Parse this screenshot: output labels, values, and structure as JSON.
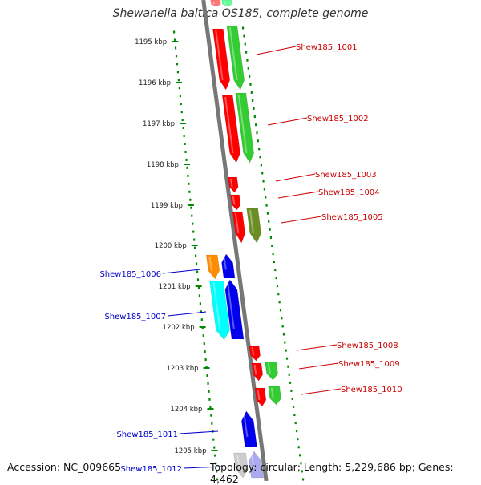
{
  "title": "Shewanella baltica OS185, complete genome",
  "footer": {
    "accession": "Accession: NC_009665",
    "topology": "Topology: circular; Length: 5,229,686 bp; Genes: 4,462"
  },
  "colors": {
    "plus_strand_label": "#cc0000",
    "minus_strand_label": "#0000cc",
    "red": "#ff0000",
    "green": "#33cc33",
    "olive": "#6b8e23",
    "orange": "#ff8c00",
    "blue": "#0000ee",
    "cyan": "#00ffff",
    "ruler": "#008800",
    "backbone": "#777777"
  },
  "ruler_labels": [
    {
      "kbp": 1195,
      "label": "1195 kbp"
    },
    {
      "kbp": 1196,
      "label": "1196 kbp"
    },
    {
      "kbp": 1197,
      "label": "1197 kbp"
    },
    {
      "kbp": 1198,
      "label": "1198 kbp"
    },
    {
      "kbp": 1199,
      "label": "1199 kbp"
    },
    {
      "kbp": 1200,
      "label": "1200 kbp"
    },
    {
      "kbp": 1201,
      "label": "1201 kbp"
    },
    {
      "kbp": 1202,
      "label": "1202 kbp"
    },
    {
      "kbp": 1203,
      "label": "1203 kbp"
    },
    {
      "kbp": 1204,
      "label": "1204 kbp"
    },
    {
      "kbp": 1205,
      "label": "1205 kbp"
    }
  ],
  "genes": [
    {
      "name": "Shew185_1001",
      "side": "right"
    },
    {
      "name": "Shew185_1002",
      "side": "right"
    },
    {
      "name": "Shew185_1003",
      "side": "right"
    },
    {
      "name": "Shew185_1004",
      "side": "right"
    },
    {
      "name": "Shew185_1005",
      "side": "right"
    },
    {
      "name": "Shew185_1006",
      "side": "left"
    },
    {
      "name": "Shew185_1007",
      "side": "left"
    },
    {
      "name": "Shew185_1008",
      "side": "right"
    },
    {
      "name": "Shew185_1009",
      "side": "right"
    },
    {
      "name": "Shew185_1010",
      "side": "right"
    },
    {
      "name": "Shew185_1011",
      "side": "left"
    },
    {
      "name": "Shew185_1012",
      "side": "left"
    }
  ]
}
